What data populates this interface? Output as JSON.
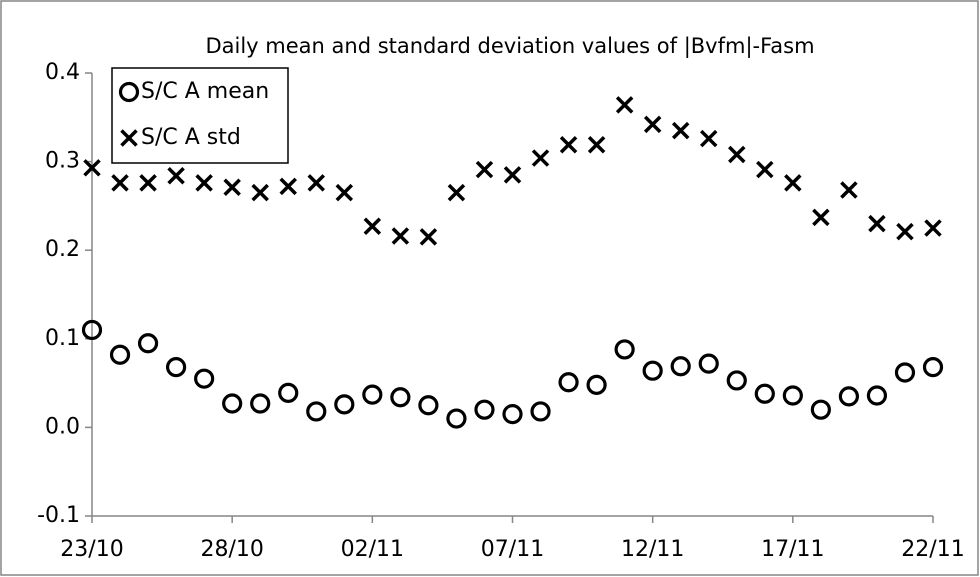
{
  "chart_data": {
    "type": "scatter",
    "title": "Daily mean and standard deviation values of |Bvfm|-Fasm",
    "categories": [
      "23/10",
      null,
      null,
      null,
      null,
      "28/10",
      null,
      null,
      null,
      null,
      "02/11",
      null,
      null,
      null,
      null,
      "07/11",
      null,
      null,
      null,
      null,
      "12/11",
      null,
      null,
      null,
      null,
      "17/11",
      null,
      null,
      null,
      null,
      "22/11"
    ],
    "series": [
      {
        "name": "S/C A mean",
        "color": "#000000",
        "marker": "circle",
        "values": [
          0.11,
          0.082,
          0.095,
          0.068,
          0.055,
          0.027,
          0.027,
          0.039,
          0.018,
          0.026,
          0.037,
          0.034,
          0.025,
          0.01,
          0.02,
          0.015,
          0.018,
          0.051,
          0.048,
          0.088,
          0.064,
          0.069,
          0.072,
          0.053,
          0.038,
          0.036,
          0.02,
          0.035,
          0.036,
          0.062,
          0.068
        ]
      },
      {
        "name": "S/C A std",
        "color": "#000000",
        "marker": "x",
        "values": [
          0.293,
          0.276,
          0.276,
          0.284,
          0.276,
          0.271,
          0.265,
          0.272,
          0.276,
          0.265,
          0.227,
          0.216,
          0.215,
          0.265,
          0.291,
          0.285,
          0.304,
          0.319,
          0.319,
          0.364,
          0.342,
          0.335,
          0.326,
          0.308,
          0.291,
          0.276,
          0.237,
          0.268,
          0.23,
          0.221,
          0.225
        ]
      }
    ],
    "ylim": [
      -0.1,
      0.4
    ],
    "yticks": [
      -0.1,
      {
        "value": 0,
        "label": "0.0"
      },
      0.1,
      0.2,
      0.3,
      0.4
    ],
    "grid": false,
    "legend": "top-left"
  }
}
